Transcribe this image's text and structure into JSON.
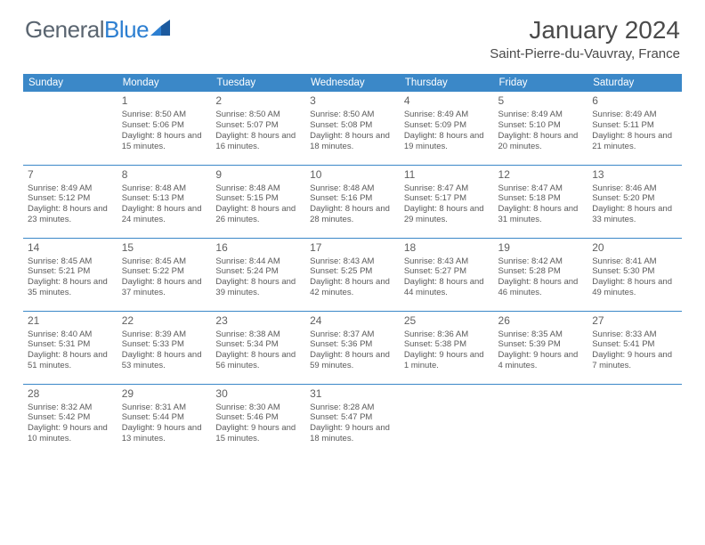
{
  "brand": {
    "general": "General",
    "blue": "Blue"
  },
  "title": "January 2024",
  "location": "Saint-Pierre-du-Vauvray, France",
  "colors": {
    "header_bg": "#3b88c8",
    "header_text": "#ffffff",
    "cell_border": "#3b88c8",
    "body_text": "#5a5a5a",
    "title_text": "#4a4a4a",
    "logo_gray": "#5a6570",
    "logo_blue": "#2d7fd1",
    "background": "#ffffff"
  },
  "weekdays": [
    "Sunday",
    "Monday",
    "Tuesday",
    "Wednesday",
    "Thursday",
    "Friday",
    "Saturday"
  ],
  "weeks": [
    [
      null,
      {
        "n": "1",
        "sr": "8:50 AM",
        "ss": "5:06 PM",
        "dl": "8 hours and 15 minutes."
      },
      {
        "n": "2",
        "sr": "8:50 AM",
        "ss": "5:07 PM",
        "dl": "8 hours and 16 minutes."
      },
      {
        "n": "3",
        "sr": "8:50 AM",
        "ss": "5:08 PM",
        "dl": "8 hours and 18 minutes."
      },
      {
        "n": "4",
        "sr": "8:49 AM",
        "ss": "5:09 PM",
        "dl": "8 hours and 19 minutes."
      },
      {
        "n": "5",
        "sr": "8:49 AM",
        "ss": "5:10 PM",
        "dl": "8 hours and 20 minutes."
      },
      {
        "n": "6",
        "sr": "8:49 AM",
        "ss": "5:11 PM",
        "dl": "8 hours and 21 minutes."
      }
    ],
    [
      {
        "n": "7",
        "sr": "8:49 AM",
        "ss": "5:12 PM",
        "dl": "8 hours and 23 minutes."
      },
      {
        "n": "8",
        "sr": "8:48 AM",
        "ss": "5:13 PM",
        "dl": "8 hours and 24 minutes."
      },
      {
        "n": "9",
        "sr": "8:48 AM",
        "ss": "5:15 PM",
        "dl": "8 hours and 26 minutes."
      },
      {
        "n": "10",
        "sr": "8:48 AM",
        "ss": "5:16 PM",
        "dl": "8 hours and 28 minutes."
      },
      {
        "n": "11",
        "sr": "8:47 AM",
        "ss": "5:17 PM",
        "dl": "8 hours and 29 minutes."
      },
      {
        "n": "12",
        "sr": "8:47 AM",
        "ss": "5:18 PM",
        "dl": "8 hours and 31 minutes."
      },
      {
        "n": "13",
        "sr": "8:46 AM",
        "ss": "5:20 PM",
        "dl": "8 hours and 33 minutes."
      }
    ],
    [
      {
        "n": "14",
        "sr": "8:45 AM",
        "ss": "5:21 PM",
        "dl": "8 hours and 35 minutes."
      },
      {
        "n": "15",
        "sr": "8:45 AM",
        "ss": "5:22 PM",
        "dl": "8 hours and 37 minutes."
      },
      {
        "n": "16",
        "sr": "8:44 AM",
        "ss": "5:24 PM",
        "dl": "8 hours and 39 minutes."
      },
      {
        "n": "17",
        "sr": "8:43 AM",
        "ss": "5:25 PM",
        "dl": "8 hours and 42 minutes."
      },
      {
        "n": "18",
        "sr": "8:43 AM",
        "ss": "5:27 PM",
        "dl": "8 hours and 44 minutes."
      },
      {
        "n": "19",
        "sr": "8:42 AM",
        "ss": "5:28 PM",
        "dl": "8 hours and 46 minutes."
      },
      {
        "n": "20",
        "sr": "8:41 AM",
        "ss": "5:30 PM",
        "dl": "8 hours and 49 minutes."
      }
    ],
    [
      {
        "n": "21",
        "sr": "8:40 AM",
        "ss": "5:31 PM",
        "dl": "8 hours and 51 minutes."
      },
      {
        "n": "22",
        "sr": "8:39 AM",
        "ss": "5:33 PM",
        "dl": "8 hours and 53 minutes."
      },
      {
        "n": "23",
        "sr": "8:38 AM",
        "ss": "5:34 PM",
        "dl": "8 hours and 56 minutes."
      },
      {
        "n": "24",
        "sr": "8:37 AM",
        "ss": "5:36 PM",
        "dl": "8 hours and 59 minutes."
      },
      {
        "n": "25",
        "sr": "8:36 AM",
        "ss": "5:38 PM",
        "dl": "9 hours and 1 minute."
      },
      {
        "n": "26",
        "sr": "8:35 AM",
        "ss": "5:39 PM",
        "dl": "9 hours and 4 minutes."
      },
      {
        "n": "27",
        "sr": "8:33 AM",
        "ss": "5:41 PM",
        "dl": "9 hours and 7 minutes."
      }
    ],
    [
      {
        "n": "28",
        "sr": "8:32 AM",
        "ss": "5:42 PM",
        "dl": "9 hours and 10 minutes."
      },
      {
        "n": "29",
        "sr": "8:31 AM",
        "ss": "5:44 PM",
        "dl": "9 hours and 13 minutes."
      },
      {
        "n": "30",
        "sr": "8:30 AM",
        "ss": "5:46 PM",
        "dl": "9 hours and 15 minutes."
      },
      {
        "n": "31",
        "sr": "8:28 AM",
        "ss": "5:47 PM",
        "dl": "9 hours and 18 minutes."
      },
      null,
      null,
      null
    ]
  ],
  "labels": {
    "sunrise": "Sunrise:",
    "sunset": "Sunset:",
    "daylight": "Daylight:"
  }
}
